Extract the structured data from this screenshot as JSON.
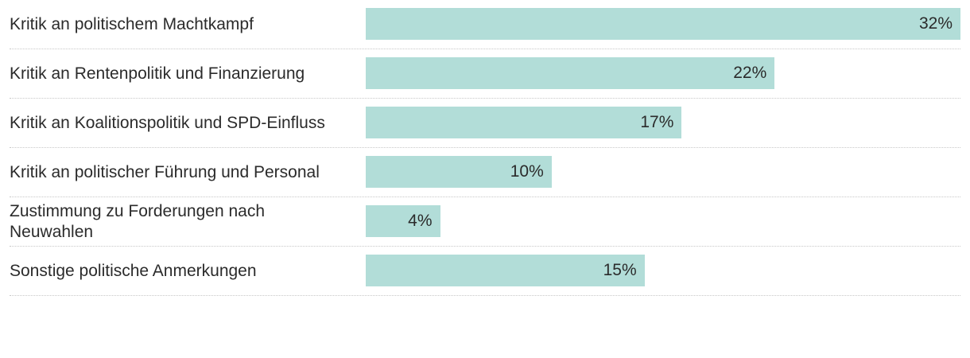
{
  "chart_data": {
    "type": "bar",
    "orientation": "horizontal",
    "bar_color": "#b2ddd8",
    "categories": [
      "Kritik an politischem Machtkampf",
      "Kritik an Rentenpolitik und Finanzierung",
      "Kritik an Koalitionspolitik und SPD-Einfluss",
      "Kritik an politischer Führung und Personal",
      "Zustimmung zu Forderungen nach Neuwahlen",
      "Sonstige politische Anmerkungen"
    ],
    "values": [
      32,
      22,
      17,
      10,
      4,
      15
    ],
    "value_labels": [
      "32%",
      "22%",
      "17%",
      "10%",
      "4%",
      "15%"
    ],
    "xlim": [
      0,
      32
    ]
  }
}
